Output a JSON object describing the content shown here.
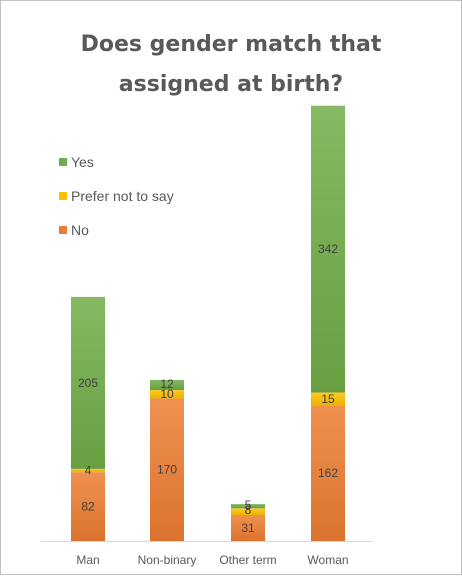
{
  "chart_data": {
    "type": "bar",
    "stacked": true,
    "title_lines": [
      "Does gender match that",
      "assigned at birth?"
    ],
    "categories": [
      "Man",
      "Non-binary",
      "Other term",
      "Woman"
    ],
    "series": [
      {
        "name": "No",
        "values": [
          82,
          170,
          31,
          162
        ],
        "color": "#ed7d31"
      },
      {
        "name": "Prefer not to say",
        "values": [
          4,
          10,
          8,
          15
        ],
        "color": "#ffc000"
      },
      {
        "name": "Yes",
        "values": [
          205,
          12,
          5,
          342
        ],
        "color": "#70ad47"
      }
    ],
    "legend_order": [
      "Yes",
      "Prefer not to say",
      "No"
    ],
    "legend_position": "left",
    "ylim": [
      0,
      521
    ],
    "grid": false,
    "data_labels": true,
    "xlabel": "",
    "ylabel": ""
  }
}
